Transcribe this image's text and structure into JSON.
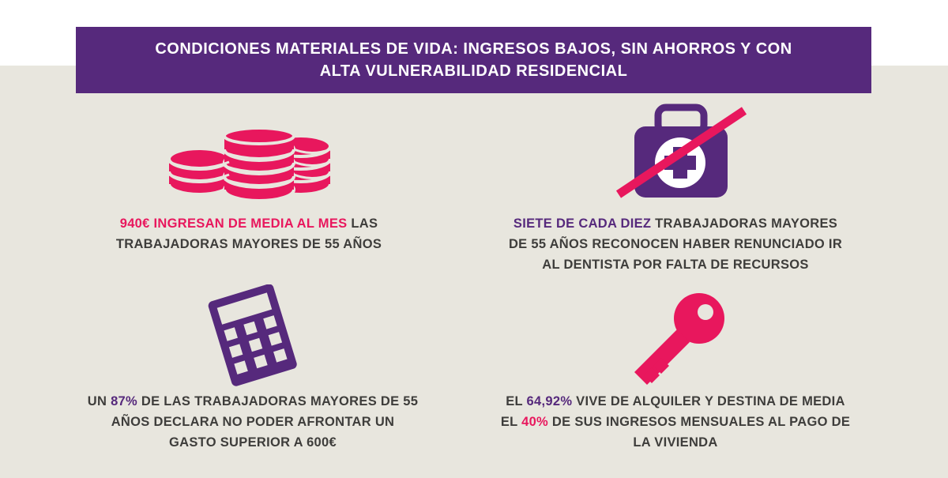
{
  "banner": {
    "title": "CONDICIONES MATERIALES DE VIDA: INGRESOS BAJOS, SIN AHORROS Y CON ALTA VULNERABILIDAD RESIDENCIAL"
  },
  "colors": {
    "accent_pink": "#e8175d",
    "accent_purple": "#56297c",
    "background": "#e8e6de",
    "text": "#3e3d3b"
  },
  "stats": {
    "income": {
      "icon": "coins-stack-icon",
      "highlight": "940€ INGRESAN DE MEDIA AL MES",
      "rest": " LAS TRABAJADORAS MAYORES DE 55 AÑOS"
    },
    "dentist": {
      "icon": "first-aid-kit-crossed-icon",
      "highlight": "SIETE DE CADA DIEZ",
      "rest": " TRABAJADORAS MAYORES DE 55 AÑOS RECONOCEN HABER RENUNCIADO IR AL DENTISTA POR FALTA DE RECURSOS"
    },
    "expense": {
      "icon": "calculator-icon",
      "pre": "UN ",
      "highlight": "87%",
      "rest": " DE LAS TRABAJADORAS MAYORES DE 55 AÑOS DECLARA NO PODER AFRONTAR UN GASTO SUPERIOR A 600€"
    },
    "housing": {
      "icon": "key-icon",
      "pre": "EL ",
      "highlight1": "64,92%",
      "mid": " VIVE DE ALQUILER Y DESTINA DE MEDIA EL ",
      "highlight2": "40%",
      "rest": " DE SUS INGRESOS MENSUALES AL PAGO DE LA VIVIENDA"
    }
  }
}
